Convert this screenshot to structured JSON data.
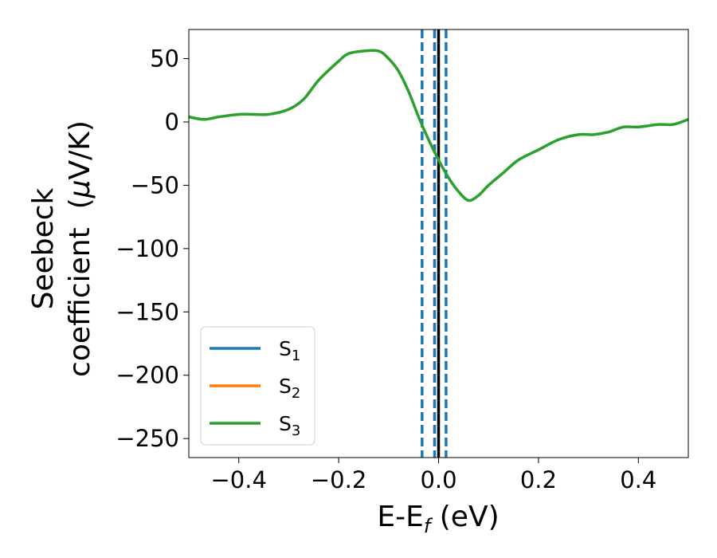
{
  "chart_data": {
    "type": "line",
    "xlabel": {
      "main": "E-E",
      "sub": "f",
      "suffix": " (eV)"
    },
    "ylabel": {
      "line1": "Seebeck",
      "line2": "coefficient  (",
      "mu": "μ",
      "unit": "V/K)"
    },
    "xlim": [
      -0.5,
      0.5
    ],
    "ylim": [
      -265,
      73
    ],
    "x_ticks": [
      -0.4,
      -0.2,
      0.0,
      0.2,
      0.4
    ],
    "x_tick_labels": [
      "−0.4",
      "−0.2",
      "0.0",
      "0.2",
      "0.4"
    ],
    "y_ticks": [
      50,
      0,
      -50,
      -100,
      -150,
      -200,
      -250
    ],
    "y_tick_labels": [
      "50",
      "0",
      "−50",
      "−100",
      "−150",
      "−200",
      "−250"
    ],
    "grid": false,
    "legend_position": "lower-left",
    "series": [
      {
        "name": "S",
        "sub": "1",
        "color": "#1f77b4",
        "x": [],
        "y": []
      },
      {
        "name": "S",
        "sub": "2",
        "color": "#ff7f0e",
        "x": [],
        "y": []
      },
      {
        "name": "S",
        "sub": "3",
        "color": "#2ca02c",
        "x": [
          -0.5,
          -0.47,
          -0.44,
          -0.4,
          -0.37,
          -0.34,
          -0.3,
          -0.27,
          -0.24,
          -0.2,
          -0.18,
          -0.15,
          -0.12,
          -0.1,
          -0.08,
          -0.06,
          -0.04,
          -0.02,
          0.0,
          0.02,
          0.04,
          0.06,
          0.08,
          0.1,
          0.13,
          0.16,
          0.2,
          0.24,
          0.28,
          0.31,
          0.34,
          0.37,
          0.4,
          0.44,
          0.47,
          0.5
        ],
        "y": [
          4,
          2,
          4,
          6,
          6,
          6,
          10,
          18,
          33,
          48,
          54,
          56,
          56,
          50,
          40,
          24,
          4,
          -14,
          -30,
          -44,
          -55,
          -62,
          -58,
          -50,
          -40,
          -30,
          -22,
          -14,
          -10,
          -10,
          -8,
          -4,
          -4,
          -2,
          -2,
          2
        ]
      }
    ],
    "vertical_lines": [
      {
        "x": -0.033,
        "style": "dashed",
        "color": "#1f77b4"
      },
      {
        "x": -0.008,
        "style": "dashed",
        "color": "#1f77b4"
      },
      {
        "x": 0.015,
        "style": "dashed",
        "color": "#1f77b4"
      },
      {
        "x": 0.0,
        "style": "solid",
        "color": "#000000"
      }
    ]
  }
}
